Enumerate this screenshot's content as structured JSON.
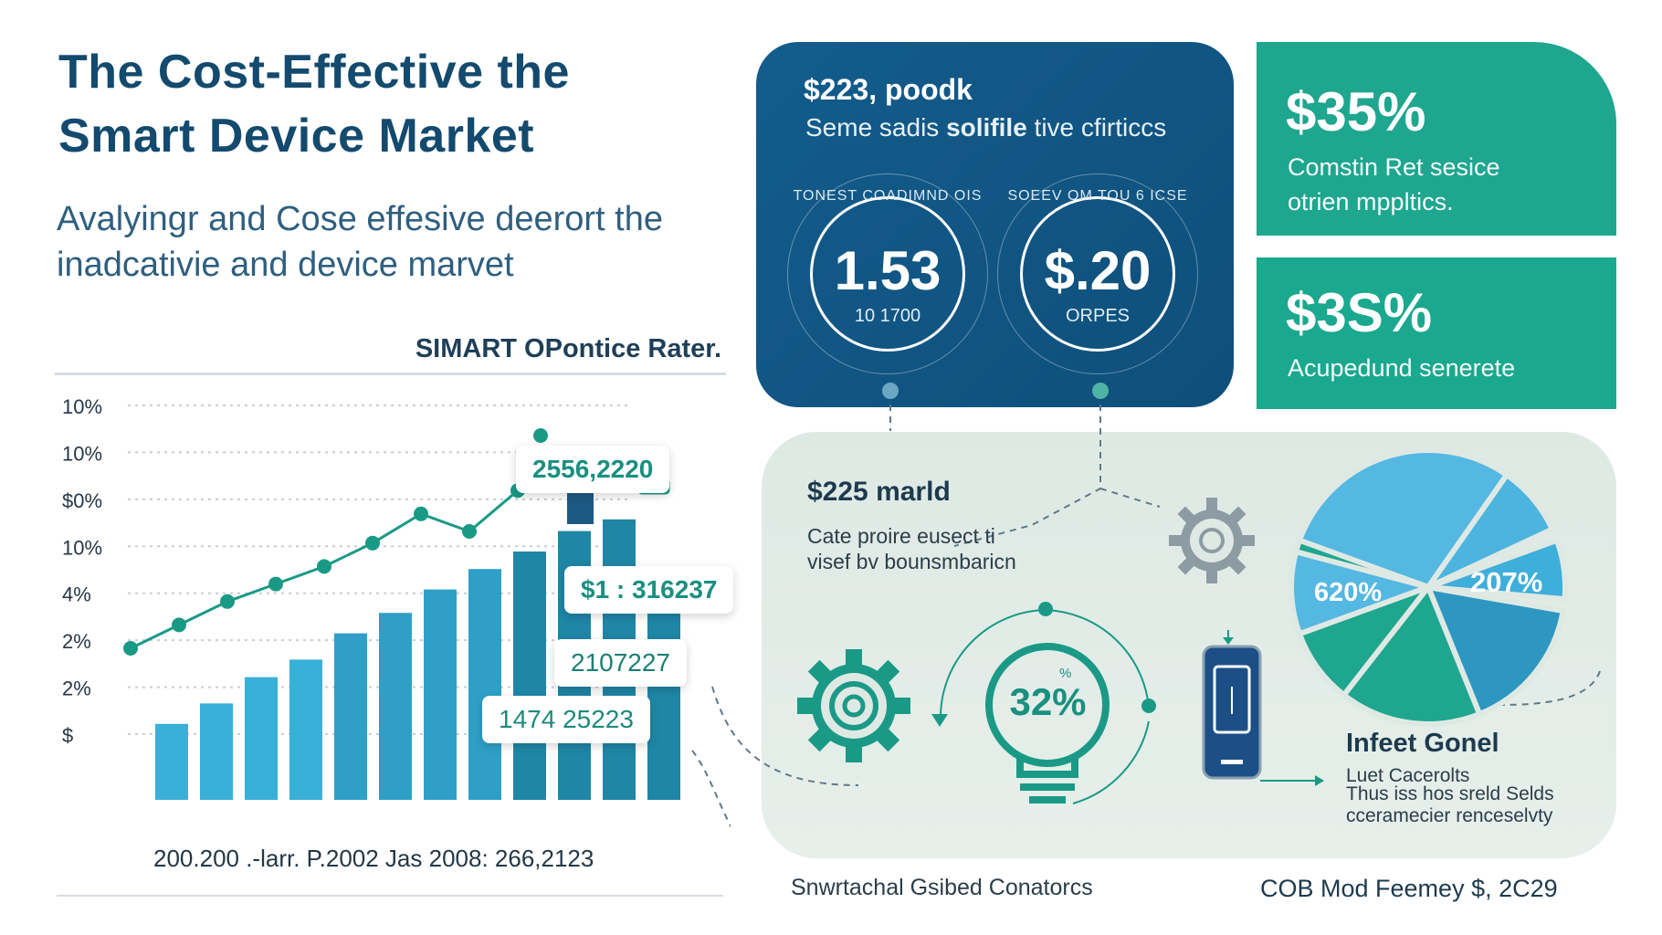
{
  "header": {
    "title": "The Cost-Effective the Smart Device Market",
    "subtitle": "Avalyingr and Cose effesive deerort the inadcativie and device marvet"
  },
  "chart_data": {
    "type": "bar",
    "title": "SIMART OPontice Rater.",
    "y_tick_labels": [
      "10%",
      "10%",
      "$0%",
      "10%",
      "4%",
      "2%",
      "2%",
      "$"
    ],
    "x_caption": "200.200 .-larr. P.2002 Jas 2008: 266,2123",
    "ylim": [
      0,
      100
    ],
    "series": [
      {
        "name": "bars",
        "values": [
          26,
          33,
          42,
          48,
          57,
          64,
          72,
          79,
          85,
          92,
          96,
          68
        ]
      },
      {
        "name": "trend",
        "values": [
          30,
          38,
          46,
          52,
          58,
          66,
          76,
          70,
          84,
          96
        ]
      }
    ],
    "callouts": [
      "2556,2220",
      "$1 : 316237",
      "2107227",
      "1474 25223"
    ]
  },
  "blue_card": {
    "title": "$223, poodk",
    "subtitle_normal": "Seme sadis ",
    "subtitle_bold": "solifile",
    "subtitle_tail": " tive cfirticcs",
    "ring1": {
      "arc": "TONEST COADIMND OIS",
      "value": "1.53",
      "sub": "10 1700"
    },
    "ring2": {
      "arc": "SOEEV OM TOU 6 ICSE",
      "value": "$.20",
      "sub": "ORPES"
    }
  },
  "green_card_1": {
    "value": "$35%",
    "text_line1": "Comstin Ret sesice",
    "text_line2": "otrien mppltics."
  },
  "green_card_2": {
    "value": "$3S%",
    "text": "Acupedund senerete"
  },
  "panel": {
    "heading": "$225 marld",
    "text": "Cate proire eusect ti visef bv bounsmbaricn",
    "bulb_value": "32%",
    "bulb_small": "%",
    "pie_label_1": "620%",
    "pie_label_2": "207%",
    "legend_title": "Infeet Gonel",
    "legend_line1": "Luet Cacerolts",
    "legend_line2": "Thus iss hos sreld Selds",
    "legend_line3": "cceramecier renceselvty"
  },
  "footer": {
    "left": "Snwrtachal Gsibed Conatorcs",
    "right": "COB Mod Feemey $, 2C29"
  },
  "colors": {
    "navy": "#134a6e",
    "blue_card": "#135c8c",
    "teal": "#1ea68f",
    "bar_light": "#38aed6",
    "bar_dark": "#1f86a6",
    "line": "#1a9a86"
  }
}
